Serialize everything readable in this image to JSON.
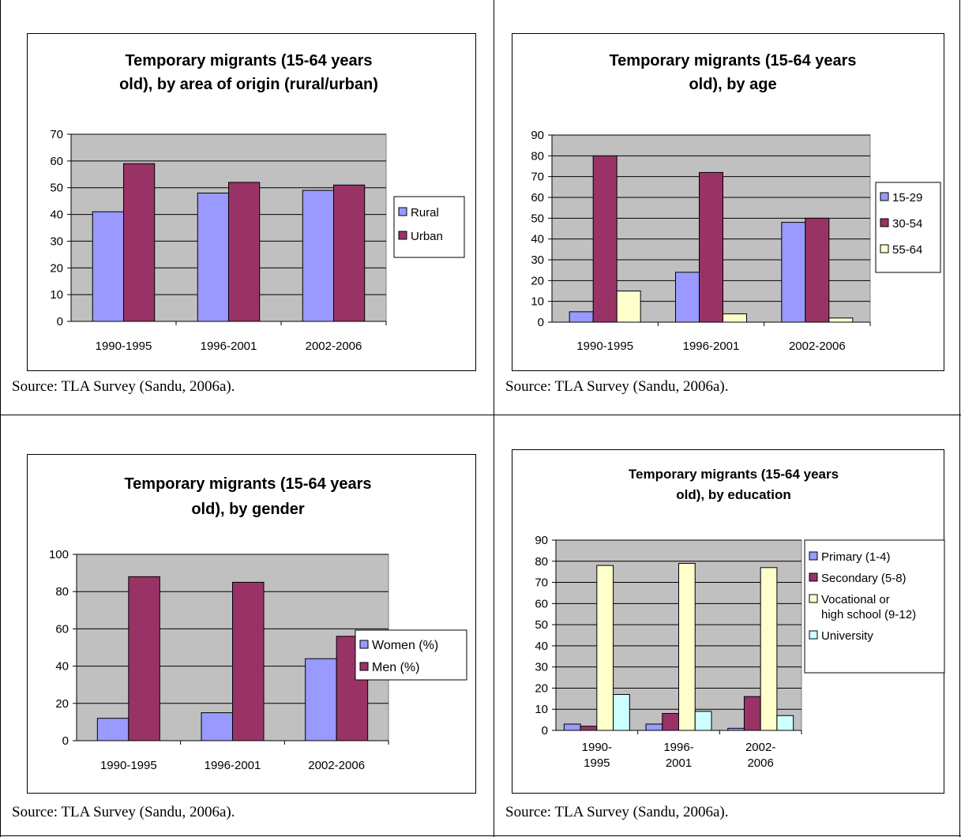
{
  "page": {
    "source_text": "Source: TLA Survey (Sandu, 2006a)."
  },
  "colors": {
    "plot_bg": "#c0c0c0",
    "series_blue": "#9999ff",
    "series_maroon": "#993366",
    "series_cream": "#ffffcc",
    "series_cyan": "#ccffff"
  },
  "chart_data": [
    {
      "type": "bar",
      "title": [
        "Temporary migrants (15-64 years",
        "old), by area of origin (rural/urban)"
      ],
      "categories": [
        [
          "1990-1995"
        ],
        [
          "1996-2001"
        ],
        [
          "2002-2006"
        ]
      ],
      "ylim": [
        0,
        70
      ],
      "ytick_step": 10,
      "grid": true,
      "legend_position": "right",
      "series": [
        {
          "name": [
            "Rural"
          ],
          "color": "#9999ff",
          "values": [
            41,
            48,
            49
          ]
        },
        {
          "name": [
            "Urban"
          ],
          "color": "#993366",
          "values": [
            59,
            52,
            51
          ]
        }
      ]
    },
    {
      "type": "bar",
      "title": [
        "Temporary migrants (15-64 years",
        "old), by age"
      ],
      "categories": [
        [
          "1990-1995"
        ],
        [
          "1996-2001"
        ],
        [
          "2002-2006"
        ]
      ],
      "ylim": [
        0,
        90
      ],
      "ytick_step": 10,
      "grid": true,
      "legend_position": "right",
      "series": [
        {
          "name": [
            "15-29"
          ],
          "color": "#9999ff",
          "values": [
            5,
            24,
            48
          ]
        },
        {
          "name": [
            "30-54"
          ],
          "color": "#993366",
          "values": [
            80,
            72,
            50
          ]
        },
        {
          "name": [
            "55-64"
          ],
          "color": "#ffffcc",
          "values": [
            15,
            4,
            2
          ]
        }
      ]
    },
    {
      "type": "bar",
      "title": [
        "Temporary migrants (15-64 years",
        "old), by gender"
      ],
      "categories": [
        [
          "1990-1995"
        ],
        [
          "1996-2001"
        ],
        [
          "2002-2006"
        ]
      ],
      "ylim": [
        0,
        100
      ],
      "ytick_step": 20,
      "grid": true,
      "legend_position": "right",
      "series": [
        {
          "name": [
            "Women (%)"
          ],
          "color": "#9999ff",
          "values": [
            12,
            15,
            44
          ]
        },
        {
          "name": [
            "Men (%)"
          ],
          "color": "#993366",
          "values": [
            88,
            85,
            56
          ]
        }
      ]
    },
    {
      "type": "bar",
      "title": [
        "Temporary migrants (15-64 years",
        "old), by education"
      ],
      "categories": [
        [
          "1990-",
          "1995"
        ],
        [
          "1996-",
          "2001"
        ],
        [
          "2002-",
          "2006"
        ]
      ],
      "ylim": [
        0,
        90
      ],
      "ytick_step": 10,
      "grid": true,
      "legend_position": "right",
      "series": [
        {
          "name": [
            "Primary (1-4)"
          ],
          "color": "#9999ff",
          "values": [
            3,
            3,
            1
          ]
        },
        {
          "name": [
            "Secondary (5-8)"
          ],
          "color": "#993366",
          "values": [
            2,
            8,
            16
          ]
        },
        {
          "name": [
            "Vocational or",
            "high school (9-12)"
          ],
          "color": "#ffffcc",
          "values": [
            78,
            79,
            77
          ]
        },
        {
          "name": [
            "University"
          ],
          "color": "#ccffff",
          "values": [
            17,
            9,
            7
          ]
        }
      ]
    }
  ]
}
